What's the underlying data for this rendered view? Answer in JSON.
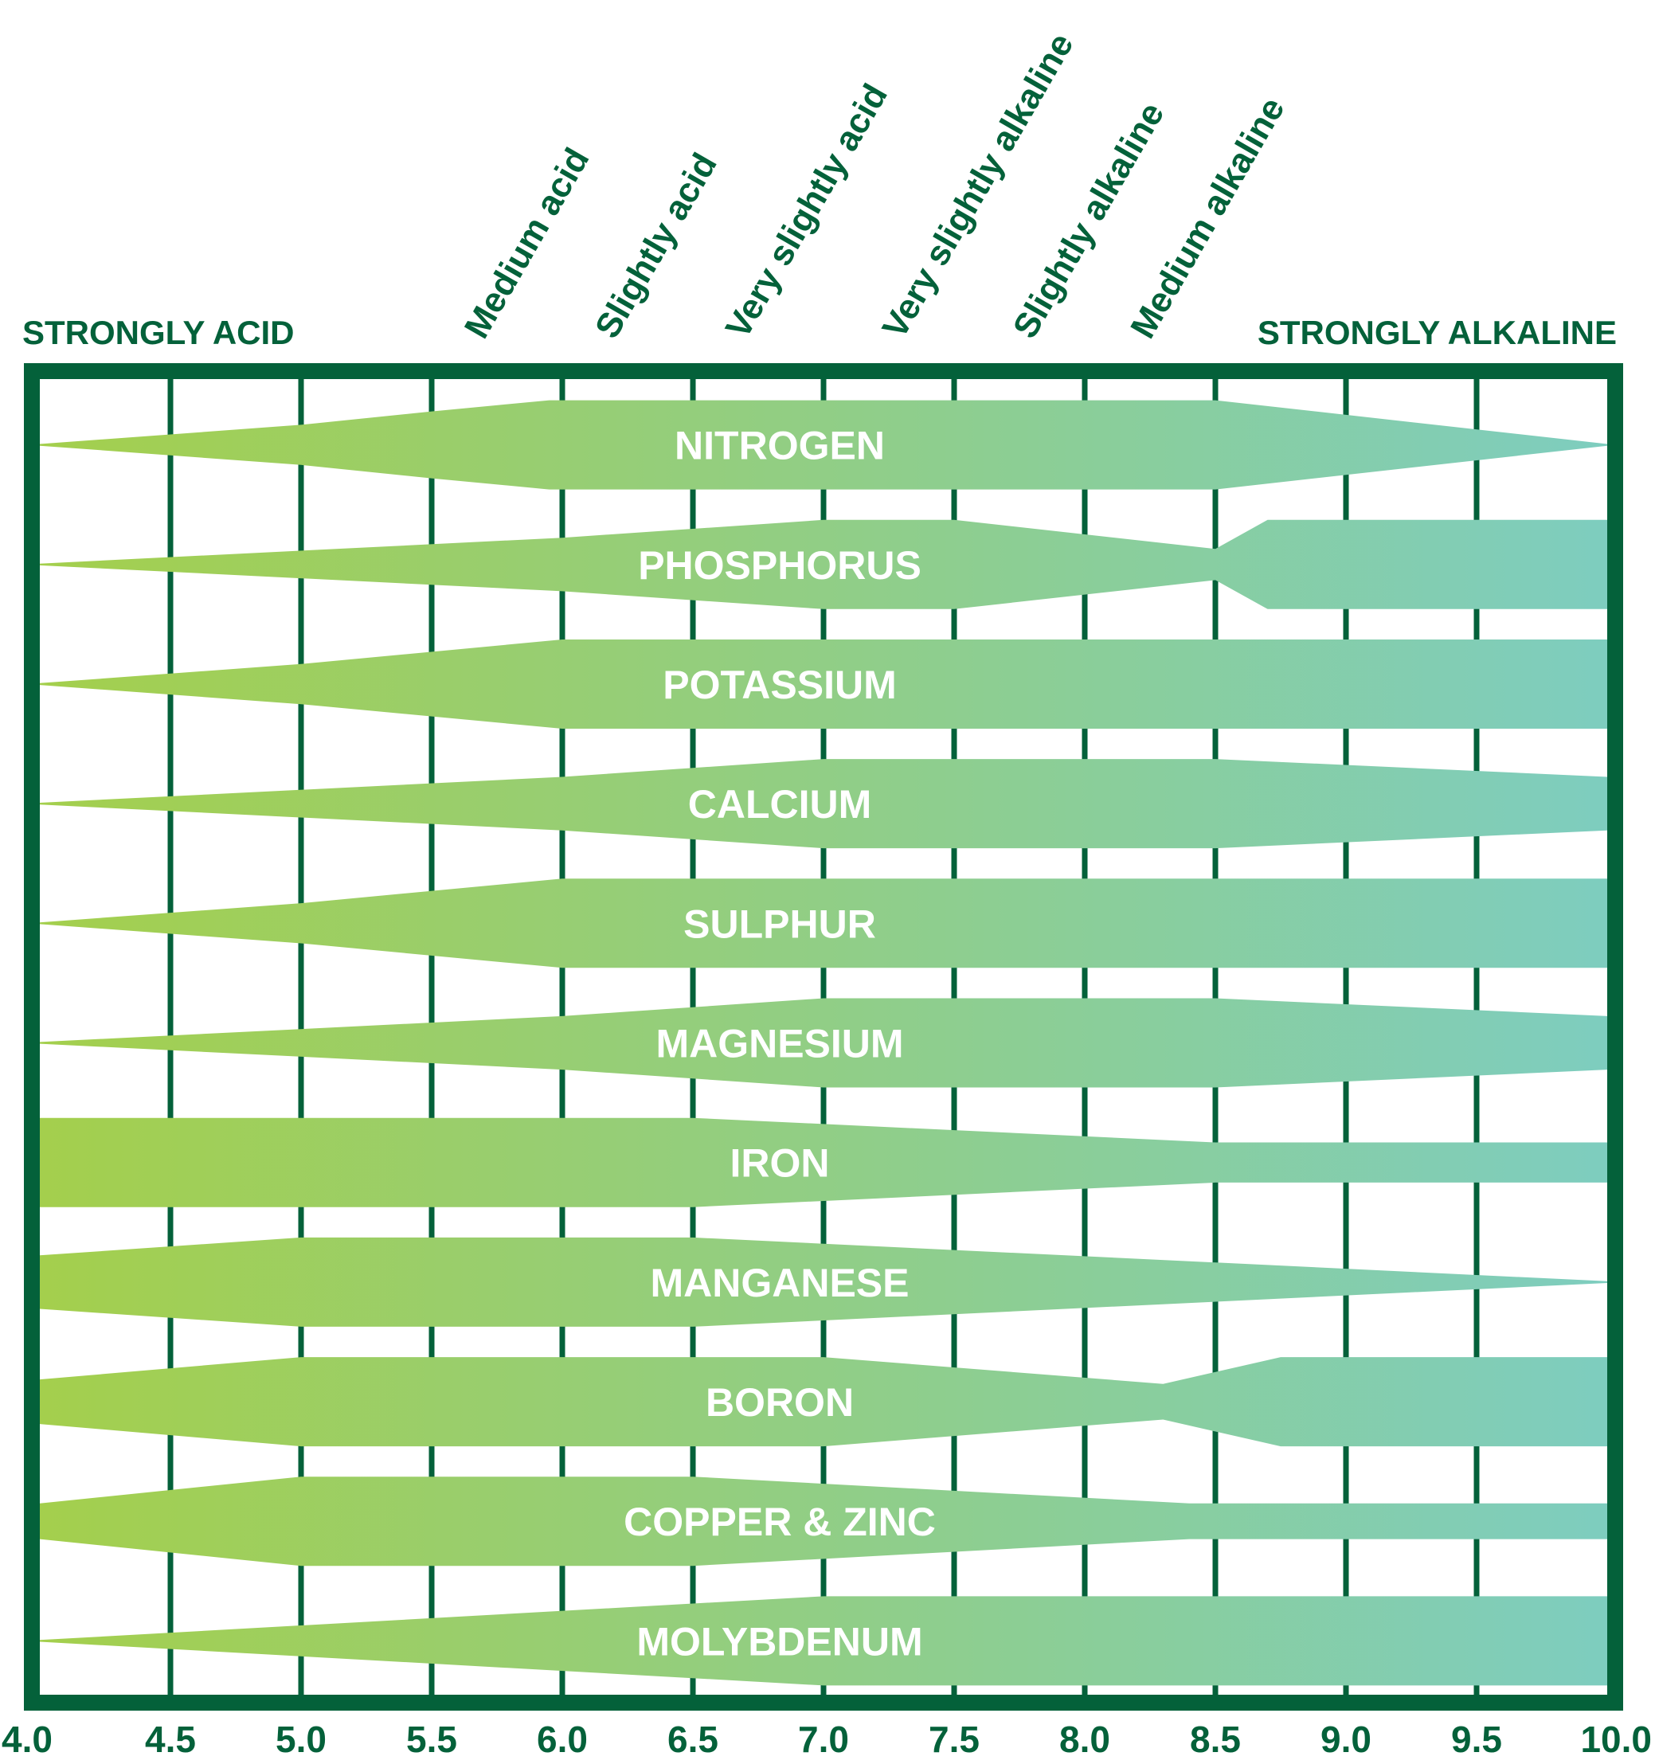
{
  "colors": {
    "frame": "#04613a",
    "gradient_start": "#a4cf4c",
    "gradient_end": "#7ecdbf",
    "band_text": "#ffffff",
    "background": "#ffffff"
  },
  "chart_data": {
    "type": "area",
    "title": "",
    "xlabel": "",
    "ylabel": "",
    "x_range": [
      4.0,
      10.0
    ],
    "x_ticks": [
      "4.0",
      "4.5",
      "5.0",
      "5.5",
      "6.0",
      "6.5",
      "7.0",
      "7.5",
      "8.0",
      "8.5",
      "9.0",
      "9.5",
      "10.0"
    ],
    "grid": "vertical",
    "zones": {
      "left": "STRONGLY ACID",
      "right": "STRONGLY ALKALINE",
      "rotated": [
        {
          "label": "Medium acid",
          "ph": 5.7
        },
        {
          "label": "Slightly acid",
          "ph": 6.2
        },
        {
          "label": "Very slightly acid",
          "ph": 6.7
        },
        {
          "label": "Very slightly alkaline",
          "ph": 7.3
        },
        {
          "label": "Slightly alkaline",
          "ph": 7.8
        },
        {
          "label": "Medium alkaline",
          "ph": 8.25
        }
      ]
    },
    "series": [
      {
        "name": "NITROGEN",
        "profile": [
          [
            4.0,
            0.02
          ],
          [
            5.0,
            0.45
          ],
          [
            5.5,
            0.75
          ],
          [
            5.95,
            1.0
          ],
          [
            8.5,
            1.0
          ],
          [
            10.0,
            0.02
          ]
        ]
      },
      {
        "name": "PHOSPHORUS",
        "profile": [
          [
            4.0,
            0.02
          ],
          [
            6.0,
            0.6
          ],
          [
            7.0,
            1.0
          ],
          [
            7.5,
            1.0
          ],
          [
            8.5,
            0.35
          ],
          [
            8.7,
            1.0
          ],
          [
            10.0,
            1.0
          ]
        ]
      },
      {
        "name": "POTASSIUM",
        "profile": [
          [
            4.0,
            0.02
          ],
          [
            5.0,
            0.45
          ],
          [
            6.0,
            1.0
          ],
          [
            10.0,
            1.0
          ]
        ]
      },
      {
        "name": "CALCIUM",
        "profile": [
          [
            4.0,
            0.02
          ],
          [
            6.0,
            0.6
          ],
          [
            7.0,
            1.0
          ],
          [
            8.5,
            1.0
          ],
          [
            10.0,
            0.6
          ]
        ]
      },
      {
        "name": "SULPHUR",
        "profile": [
          [
            4.0,
            0.02
          ],
          [
            5.0,
            0.45
          ],
          [
            6.0,
            1.0
          ],
          [
            10.0,
            1.0
          ]
        ]
      },
      {
        "name": "MAGNESIUM",
        "profile": [
          [
            4.0,
            0.02
          ],
          [
            6.0,
            0.6
          ],
          [
            7.0,
            1.0
          ],
          [
            8.5,
            1.0
          ],
          [
            10.0,
            0.6
          ]
        ]
      },
      {
        "name": "IRON",
        "profile": [
          [
            4.0,
            1.0
          ],
          [
            6.5,
            1.0
          ],
          [
            8.5,
            0.45
          ],
          [
            10.0,
            0.45
          ]
        ]
      },
      {
        "name": "MANGANESE",
        "profile": [
          [
            4.0,
            0.6
          ],
          [
            5.0,
            1.0
          ],
          [
            6.5,
            1.0
          ],
          [
            10.0,
            0.02
          ]
        ]
      },
      {
        "name": "BORON",
        "profile": [
          [
            4.0,
            0.5
          ],
          [
            5.0,
            1.0
          ],
          [
            7.0,
            1.0
          ],
          [
            8.3,
            0.4
          ],
          [
            8.75,
            1.0
          ],
          [
            10.0,
            1.0
          ]
        ]
      },
      {
        "name": "COPPER & ZINC",
        "profile": [
          [
            4.0,
            0.4
          ],
          [
            5.0,
            1.0
          ],
          [
            6.5,
            1.0
          ],
          [
            8.4,
            0.4
          ],
          [
            10.0,
            0.4
          ]
        ]
      },
      {
        "name": "MOLYBDENUM",
        "profile": [
          [
            4.0,
            0.02
          ],
          [
            7.0,
            1.0
          ],
          [
            10.0,
            1.0
          ]
        ]
      }
    ]
  }
}
